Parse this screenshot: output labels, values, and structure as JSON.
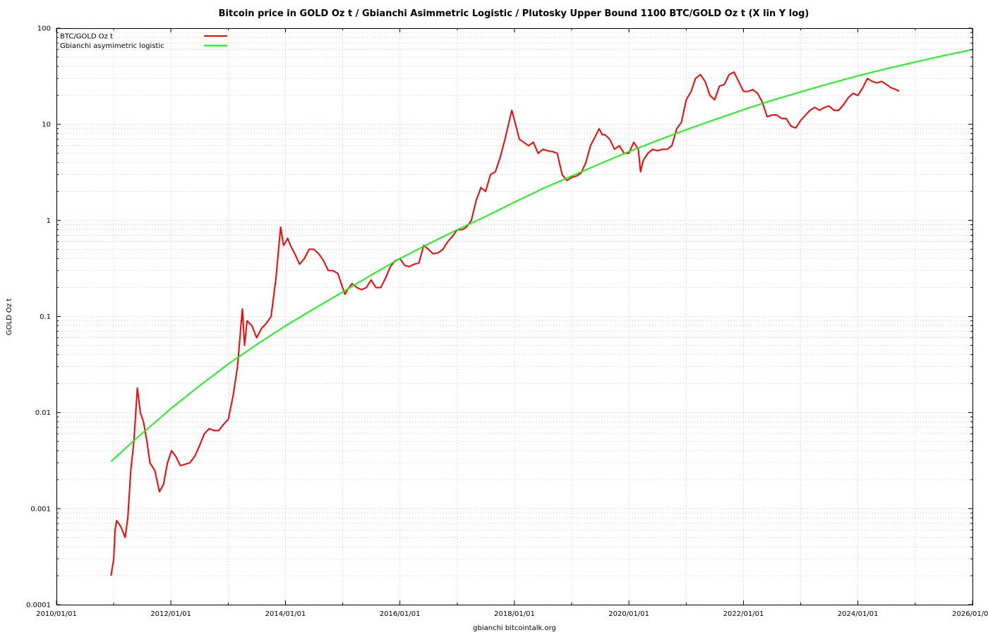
{
  "chart_data": {
    "type": "line",
    "title": "Bitcoin price in GOLD Oz t / Gbianchi Asimmetric Logistic / Plutosky Upper Bound 1100 BTC/GOLD Oz t (X lin Y log)",
    "xlabel": "gbianchi bitcointalk.org",
    "ylabel": "GOLD Oz t",
    "x_range": [
      "2010-01-01",
      "2026-01-01"
    ],
    "ylim": [
      0.0001,
      100
    ],
    "y_scale": "log",
    "grid": true,
    "legend_position": "top-left",
    "x_tick_labels": [
      "2010/01/01",
      "2012/01/01",
      "2014/01/01",
      "2016/01/01",
      "2018/01/01",
      "2020/01/01",
      "2022/01/01",
      "2024/01/01",
      "2026/01/01"
    ],
    "y_tick_labels": [
      "0.0001",
      "0.001",
      "0.01",
      "0.1",
      "1",
      "10",
      "100"
    ],
    "series": [
      {
        "name": "BTC/GOLD Oz t",
        "color": "#ff0000",
        "points": [
          [
            "2010-12-15",
            0.0002
          ],
          [
            "2011-01-01",
            0.0003
          ],
          [
            "2011-01-10",
            0.0006
          ],
          [
            "2011-01-20",
            0.00075
          ],
          [
            "2011-02-15",
            0.00065
          ],
          [
            "2011-03-15",
            0.0005
          ],
          [
            "2011-04-01",
            0.0008
          ],
          [
            "2011-04-20",
            0.0025
          ],
          [
            "2011-05-10",
            0.005
          ],
          [
            "2011-06-01",
            0.018
          ],
          [
            "2011-06-20",
            0.01
          ],
          [
            "2011-07-10",
            0.008
          ],
          [
            "2011-08-01",
            0.005
          ],
          [
            "2011-08-20",
            0.003
          ],
          [
            "2011-09-20",
            0.0025
          ],
          [
            "2011-10-20",
            0.0015
          ],
          [
            "2011-11-15",
            0.0018
          ],
          [
            "2011-12-10",
            0.003
          ],
          [
            "2012-01-05",
            0.004
          ],
          [
            "2012-02-01",
            0.0035
          ],
          [
            "2012-03-01",
            0.0028
          ],
          [
            "2012-04-01",
            0.0029
          ],
          [
            "2012-05-01",
            0.003
          ],
          [
            "2012-06-01",
            0.0035
          ],
          [
            "2012-07-01",
            0.0045
          ],
          [
            "2012-08-01",
            0.006
          ],
          [
            "2012-09-01",
            0.0068
          ],
          [
            "2012-10-01",
            0.0065
          ],
          [
            "2012-11-01",
            0.0065
          ],
          [
            "2012-12-01",
            0.0075
          ],
          [
            "2013-01-01",
            0.0085
          ],
          [
            "2013-02-01",
            0.015
          ],
          [
            "2013-03-01",
            0.03
          ],
          [
            "2013-04-01",
            0.12
          ],
          [
            "2013-04-15",
            0.05
          ],
          [
            "2013-05-01",
            0.09
          ],
          [
            "2013-06-01",
            0.08
          ],
          [
            "2013-07-01",
            0.06
          ],
          [
            "2013-08-01",
            0.075
          ],
          [
            "2013-09-01",
            0.085
          ],
          [
            "2013-10-01",
            0.1
          ],
          [
            "2013-11-01",
            0.25
          ],
          [
            "2013-12-01",
            0.85
          ],
          [
            "2013-12-20",
            0.55
          ],
          [
            "2014-01-15",
            0.65
          ],
          [
            "2014-02-01",
            0.55
          ],
          [
            "2014-03-01",
            0.45
          ],
          [
            "2014-04-01",
            0.35
          ],
          [
            "2014-05-01",
            0.4
          ],
          [
            "2014-06-01",
            0.5
          ],
          [
            "2014-07-01",
            0.5
          ],
          [
            "2014-08-01",
            0.45
          ],
          [
            "2014-09-01",
            0.38
          ],
          [
            "2014-10-01",
            0.3
          ],
          [
            "2014-11-01",
            0.3
          ],
          [
            "2014-12-01",
            0.28
          ],
          [
            "2015-01-15",
            0.17
          ],
          [
            "2015-02-01",
            0.19
          ],
          [
            "2015-03-01",
            0.22
          ],
          [
            "2015-04-01",
            0.2
          ],
          [
            "2015-05-01",
            0.19
          ],
          [
            "2015-06-01",
            0.2
          ],
          [
            "2015-07-01",
            0.24
          ],
          [
            "2015-08-01",
            0.2
          ],
          [
            "2015-09-01",
            0.2
          ],
          [
            "2015-10-01",
            0.25
          ],
          [
            "2015-11-01",
            0.33
          ],
          [
            "2015-12-01",
            0.38
          ],
          [
            "2016-01-01",
            0.4
          ],
          [
            "2016-02-01",
            0.34
          ],
          [
            "2016-03-01",
            0.33
          ],
          [
            "2016-04-01",
            0.35
          ],
          [
            "2016-05-01",
            0.36
          ],
          [
            "2016-06-01",
            0.55
          ],
          [
            "2016-07-01",
            0.5
          ],
          [
            "2016-08-01",
            0.45
          ],
          [
            "2016-09-01",
            0.46
          ],
          [
            "2016-10-01",
            0.5
          ],
          [
            "2016-11-01",
            0.6
          ],
          [
            "2016-12-01",
            0.68
          ],
          [
            "2017-01-01",
            0.8
          ],
          [
            "2017-02-01",
            0.8
          ],
          [
            "2017-03-01",
            0.85
          ],
          [
            "2017-04-01",
            1.0
          ],
          [
            "2017-05-01",
            1.6
          ],
          [
            "2017-06-01",
            2.2
          ],
          [
            "2017-07-01",
            2.0
          ],
          [
            "2017-08-01",
            3.0
          ],
          [
            "2017-09-01",
            3.2
          ],
          [
            "2017-10-01",
            4.5
          ],
          [
            "2017-11-01",
            7.0
          ],
          [
            "2017-12-15",
            14.0
          ],
          [
            "2018-01-01",
            11.0
          ],
          [
            "2018-02-01",
            7.0
          ],
          [
            "2018-03-01",
            6.5
          ],
          [
            "2018-04-01",
            6.0
          ],
          [
            "2018-05-01",
            6.5
          ],
          [
            "2018-06-01",
            5.0
          ],
          [
            "2018-07-01",
            5.5
          ],
          [
            "2018-08-01",
            5.3
          ],
          [
            "2018-09-01",
            5.2
          ],
          [
            "2018-10-01",
            5.0
          ],
          [
            "2018-11-01",
            3.0
          ],
          [
            "2018-12-01",
            2.6
          ],
          [
            "2019-01-01",
            2.8
          ],
          [
            "2019-02-01",
            2.9
          ],
          [
            "2019-03-01",
            3.1
          ],
          [
            "2019-04-01",
            4.0
          ],
          [
            "2019-05-01",
            6.0
          ],
          [
            "2019-06-01",
            7.5
          ],
          [
            "2019-06-25",
            9.0
          ],
          [
            "2019-07-15",
            7.8
          ],
          [
            "2019-08-01",
            7.8
          ],
          [
            "2019-09-01",
            7.0
          ],
          [
            "2019-10-01",
            5.5
          ],
          [
            "2019-11-01",
            6.0
          ],
          [
            "2019-12-01",
            5.0
          ],
          [
            "2020-01-01",
            5.0
          ],
          [
            "2020-02-01",
            6.5
          ],
          [
            "2020-03-01",
            5.5
          ],
          [
            "2020-03-15",
            3.2
          ],
          [
            "2020-04-01",
            4.2
          ],
          [
            "2020-05-01",
            5.0
          ],
          [
            "2020-06-01",
            5.5
          ],
          [
            "2020-07-01",
            5.3
          ],
          [
            "2020-08-01",
            5.5
          ],
          [
            "2020-09-01",
            5.5
          ],
          [
            "2020-10-01",
            6.0
          ],
          [
            "2020-11-01",
            9.0
          ],
          [
            "2020-12-01",
            10.5
          ],
          [
            "2021-01-01",
            18.0
          ],
          [
            "2021-02-01",
            22.0
          ],
          [
            "2021-03-01",
            30.0
          ],
          [
            "2021-04-01",
            33.0
          ],
          [
            "2021-05-01",
            28.0
          ],
          [
            "2021-06-01",
            20.0
          ],
          [
            "2021-07-01",
            18.0
          ],
          [
            "2021-08-01",
            25.0
          ],
          [
            "2021-09-01",
            26.0
          ],
          [
            "2021-10-01",
            33.0
          ],
          [
            "2021-11-01",
            35.0
          ],
          [
            "2021-12-01",
            28.0
          ],
          [
            "2022-01-01",
            22.0
          ],
          [
            "2022-02-01",
            22.0
          ],
          [
            "2022-03-01",
            23.0
          ],
          [
            "2022-04-01",
            21.0
          ],
          [
            "2022-05-01",
            17.0
          ],
          [
            "2022-06-01",
            12.0
          ],
          [
            "2022-07-01",
            12.5
          ],
          [
            "2022-08-01",
            12.5
          ],
          [
            "2022-09-01",
            11.5
          ],
          [
            "2022-10-01",
            11.5
          ],
          [
            "2022-11-01",
            9.5
          ],
          [
            "2022-12-01",
            9.2
          ],
          [
            "2023-01-01",
            11.0
          ],
          [
            "2023-02-01",
            12.5
          ],
          [
            "2023-03-01",
            14.0
          ],
          [
            "2023-04-01",
            15.0
          ],
          [
            "2023-05-01",
            14.0
          ],
          [
            "2023-06-01",
            15.0
          ],
          [
            "2023-07-01",
            15.5
          ],
          [
            "2023-08-01",
            14.0
          ],
          [
            "2023-09-01",
            14.0
          ],
          [
            "2023-10-01",
            16.0
          ],
          [
            "2023-11-01",
            19.0
          ],
          [
            "2023-12-01",
            21.0
          ],
          [
            "2024-01-01",
            20.0
          ],
          [
            "2024-02-01",
            24.0
          ],
          [
            "2024-03-01",
            30.0
          ],
          [
            "2024-04-01",
            28.0
          ],
          [
            "2024-05-01",
            27.0
          ],
          [
            "2024-06-01",
            28.0
          ],
          [
            "2024-07-01",
            26.0
          ],
          [
            "2024-08-01",
            24.0
          ],
          [
            "2024-09-01",
            23.0
          ],
          [
            "2024-09-20",
            22.0
          ]
        ]
      },
      {
        "name": "Gbianchi asymimetric logistic",
        "color": "#00ff00",
        "points": [
          [
            "2010-12-15",
            0.0031
          ],
          [
            "2011-06-01",
            0.0055
          ],
          [
            "2012-01-01",
            0.011
          ],
          [
            "2012-07-01",
            0.019
          ],
          [
            "2013-01-01",
            0.032
          ],
          [
            "2013-07-01",
            0.051
          ],
          [
            "2014-01-01",
            0.08
          ],
          [
            "2014-07-01",
            0.12
          ],
          [
            "2015-01-01",
            0.18
          ],
          [
            "2015-07-01",
            0.27
          ],
          [
            "2016-01-01",
            0.4
          ],
          [
            "2016-07-01",
            0.57
          ],
          [
            "2017-01-01",
            0.8
          ],
          [
            "2017-07-01",
            1.1
          ],
          [
            "2018-01-01",
            1.55
          ],
          [
            "2018-07-01",
            2.15
          ],
          [
            "2019-01-01",
            2.9
          ],
          [
            "2019-07-01",
            3.9
          ],
          [
            "2020-01-01",
            5.2
          ],
          [
            "2020-07-01",
            6.8
          ],
          [
            "2021-01-01",
            8.8
          ],
          [
            "2021-07-01",
            11.2
          ],
          [
            "2022-01-01",
            14.2
          ],
          [
            "2022-07-01",
            17.8
          ],
          [
            "2023-01-01",
            21.8
          ],
          [
            "2023-07-01",
            26.5
          ],
          [
            "2024-01-01",
            32.0
          ],
          [
            "2024-07-01",
            38.0
          ],
          [
            "2025-01-01",
            44.5
          ],
          [
            "2025-07-01",
            52.0
          ],
          [
            "2026-01-01",
            60.0
          ]
        ]
      }
    ]
  }
}
